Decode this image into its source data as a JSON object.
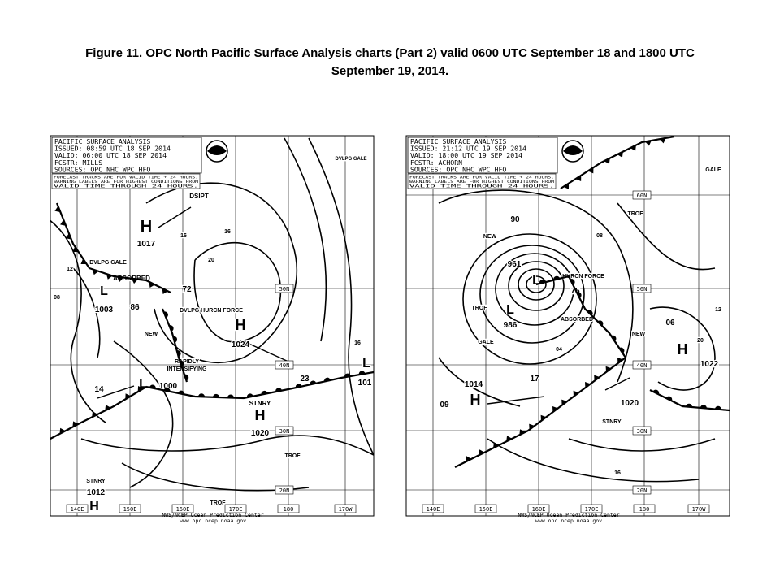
{
  "title_lines": [
    "Figure 11.  OPC North Pacific Surface Analysis charts (Part 2) valid 0600 UTC September 18 and 1800 UTC",
    "September 19, 2014."
  ],
  "maps": [
    {
      "header": [
        "PACIFIC SURFACE ANALYSIS",
        "ISSUED: 08:59 UTC 18 SEP 2014",
        "VALID:  06:00 UTC 18 SEP 2014",
        "FCSTR:  MILLS",
        "SOURCES: OPC NHC WPC HFO"
      ],
      "note": [
        "FORECAST TRACKS ARE FOR VALID TIME + 24 HOURS.",
        "WARNING LABELS ARE FOR HIGHEST CONDITIONS FROM",
        "VALID TIME THROUGH 24 HOURS."
      ],
      "lon_labels": [
        "140E",
        "150E",
        "160E",
        "170E",
        "180",
        "170W"
      ],
      "lat_labels": [
        "50N",
        "40N",
        "30N",
        "20N"
      ],
      "labels": [
        "H",
        "1017",
        "DVLPG GALE",
        "ABSORBED",
        "L",
        "1003",
        "86",
        "DSIPT",
        "72",
        "DVLPG HURCN FORCE",
        "H",
        "1024",
        "RAPIDLY",
        "INTENSIFYING",
        "L",
        "1000",
        "23",
        "STNRY",
        "H",
        "1020",
        "14",
        "TROF",
        "TROF",
        "STNRY",
        "1012",
        "H",
        "DVLPG GALE",
        "NEW",
        "16",
        "16",
        "20",
        "12",
        "08",
        "16",
        "L",
        "101"
      ],
      "footer": [
        "NWS/NCEP   Ocean Prediction Center",
        "www.opc.ncep.noaa.gov"
      ]
    },
    {
      "header": [
        "PACIFIC SURFACE ANALYSIS",
        "ISSUED: 21:12 UTC 19 SEP 2014",
        "VALID:  18:00 UTC 19 SEP 2014",
        "FCSTR:  ACHORN",
        "SOURCES: OPC NHC WPC HFO"
      ],
      "note": [
        "FORECAST TRACKS ARE FOR VALID TIME + 24 HOURS.",
        "WARNING LABELS ARE FOR HIGHEST CONDITIONS FROM",
        "VALID TIME THROUGH 24 HOURS."
      ],
      "lon_labels": [
        "140E",
        "150E",
        "160E",
        "170E",
        "180",
        "170W"
      ],
      "lat_labels": [
        "60N",
        "50N",
        "40N",
        "30N",
        "20N"
      ],
      "labels": [
        "90",
        "NEW",
        "961",
        "L",
        "75",
        "HURCN FORCE",
        "TROF",
        "L",
        "986",
        "ABSORBED",
        "GALE",
        "TROF",
        "NEW",
        "06",
        "H",
        "1022",
        "17",
        "1014",
        "H",
        "09",
        "1020",
        "STNRY",
        "16",
        "GALE",
        "08",
        "12",
        "20",
        "04"
      ],
      "footer": [
        "NWS/NCEP   Ocean Prediction Center",
        "www.opc.ncep.noaa.gov"
      ]
    }
  ]
}
